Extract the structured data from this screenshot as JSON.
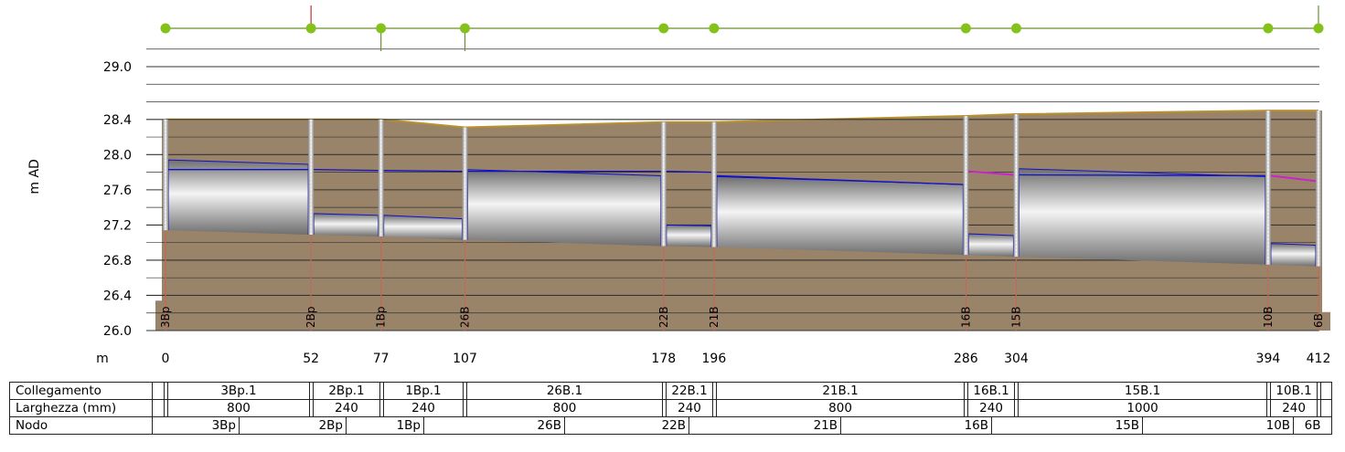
{
  "y_axis_label": "m AD",
  "x_axis_label": "m",
  "chart_data": {
    "type": "long-section profile",
    "ylabel": "m AD",
    "xlabel": "m",
    "ylim": [
      26.0,
      29.3
    ],
    "yticks": [
      "29.0",
      "28.4",
      "28.0",
      "27.6",
      "27.2",
      "26.8",
      "26.4",
      "26.0"
    ],
    "y_tick_values": [
      29.0,
      28.4,
      28.0,
      27.6,
      27.2,
      26.8,
      26.4,
      26.0
    ],
    "xlim": [
      0,
      412
    ],
    "colors": {
      "ground": "#9a8469",
      "ground_line": "#b8912e",
      "node_marker": "#84c21b",
      "hydraulic_line": "#1010cc",
      "surcharge_line": "#cc22cc",
      "manhole_stem": "#c06a5a",
      "pipe_fill": "#cfcfcf"
    },
    "nodes": [
      {
        "id": "3Bp",
        "chainage": 0,
        "chainage_label": "0",
        "ground": 28.4,
        "invert": 27.14
      },
      {
        "id": "2Bp",
        "chainage": 52,
        "chainage_label": "52",
        "ground": 28.4,
        "invert": 27.09
      },
      {
        "id": "1Bp",
        "chainage": 77,
        "chainage_label": "77",
        "ground": 28.4,
        "invert": 27.07
      },
      {
        "id": "26B",
        "chainage": 107,
        "chainage_label": "107",
        "ground": 28.31,
        "invert": 27.03
      },
      {
        "id": "22B",
        "chainage": 178,
        "chainage_label": "178",
        "ground": 28.37,
        "invert": 26.96
      },
      {
        "id": "21B",
        "chainage": 196,
        "chainage_label": "196",
        "ground": 28.37,
        "invert": 26.95
      },
      {
        "id": "16B",
        "chainage": 286,
        "chainage_label": "286",
        "ground": 28.44,
        "invert": 26.86
      },
      {
        "id": "15B",
        "chainage": 304,
        "chainage_label": "304",
        "ground": 28.46,
        "invert": 26.84
      },
      {
        "id": "10B",
        "chainage": 394,
        "chainage_label": "394",
        "ground": 28.5,
        "invert": 26.75
      },
      {
        "id": "6B",
        "chainage": 412,
        "chainage_label": "412",
        "ground": 28.5,
        "invert": 26.73
      }
    ],
    "pipes": [
      {
        "link": "3Bp.1",
        "width_mm": "800",
        "from": 0,
        "to": 52,
        "inv_up": 27.14,
        "inv_dn": 27.09,
        "diameter": 0.8,
        "hgl_up": 27.83,
        "hgl_dn": 27.83
      },
      {
        "link": "2Bp.1",
        "width_mm": "240",
        "from": 52,
        "to": 77,
        "inv_up": 27.09,
        "inv_dn": 27.07,
        "diameter": 0.24,
        "hgl_up": 27.83,
        "hgl_dn": 27.82
      },
      {
        "link": "1Bp.1",
        "width_mm": "240",
        "from": 77,
        "to": 107,
        "inv_up": 27.07,
        "inv_dn": 27.03,
        "diameter": 0.24,
        "hgl_up": 27.82,
        "hgl_dn": 27.81
      },
      {
        "link": "26B.1",
        "width_mm": "800",
        "from": 107,
        "to": 178,
        "inv_up": 27.03,
        "inv_dn": 26.96,
        "diameter": 0.8,
        "hgl_up": 27.81,
        "hgl_dn": 27.81
      },
      {
        "link": "22B.1",
        "width_mm": "240",
        "from": 178,
        "to": 196,
        "inv_up": 26.96,
        "inv_dn": 26.95,
        "diameter": 0.24,
        "hgl_up": 27.81,
        "hgl_dn": 27.8
      },
      {
        "link": "21B.1",
        "width_mm": "800",
        "from": 196,
        "to": 286,
        "inv_up": 26.95,
        "inv_dn": 26.86,
        "diameter": 0.8,
        "hgl_up": 27.76,
        "hgl_dn": 27.66
      },
      {
        "link": "16B.1",
        "width_mm": "240",
        "from": 286,
        "to": 304,
        "inv_up": 26.86,
        "inv_dn": 26.84,
        "diameter": 0.24,
        "hgl_up": 27.81,
        "hgl_dn": 27.77
      },
      {
        "link": "15B.1",
        "width_mm": "1000",
        "from": 304,
        "to": 394,
        "inv_up": 26.84,
        "inv_dn": 26.75,
        "diameter": 1.0,
        "hgl_up": 27.77,
        "hgl_dn": 27.76
      },
      {
        "link": "10B.1",
        "width_mm": "240",
        "from": 394,
        "to": 412,
        "inv_up": 26.75,
        "inv_dn": 26.73,
        "diameter": 0.24,
        "hgl_up": 27.76,
        "hgl_dn": 27.7
      }
    ]
  },
  "table": {
    "rows": [
      {
        "label": "Collegamento",
        "field": "link"
      },
      {
        "label": "Larghezza (mm)",
        "field": "width_mm"
      }
    ],
    "node_row_label": "Nodo"
  }
}
